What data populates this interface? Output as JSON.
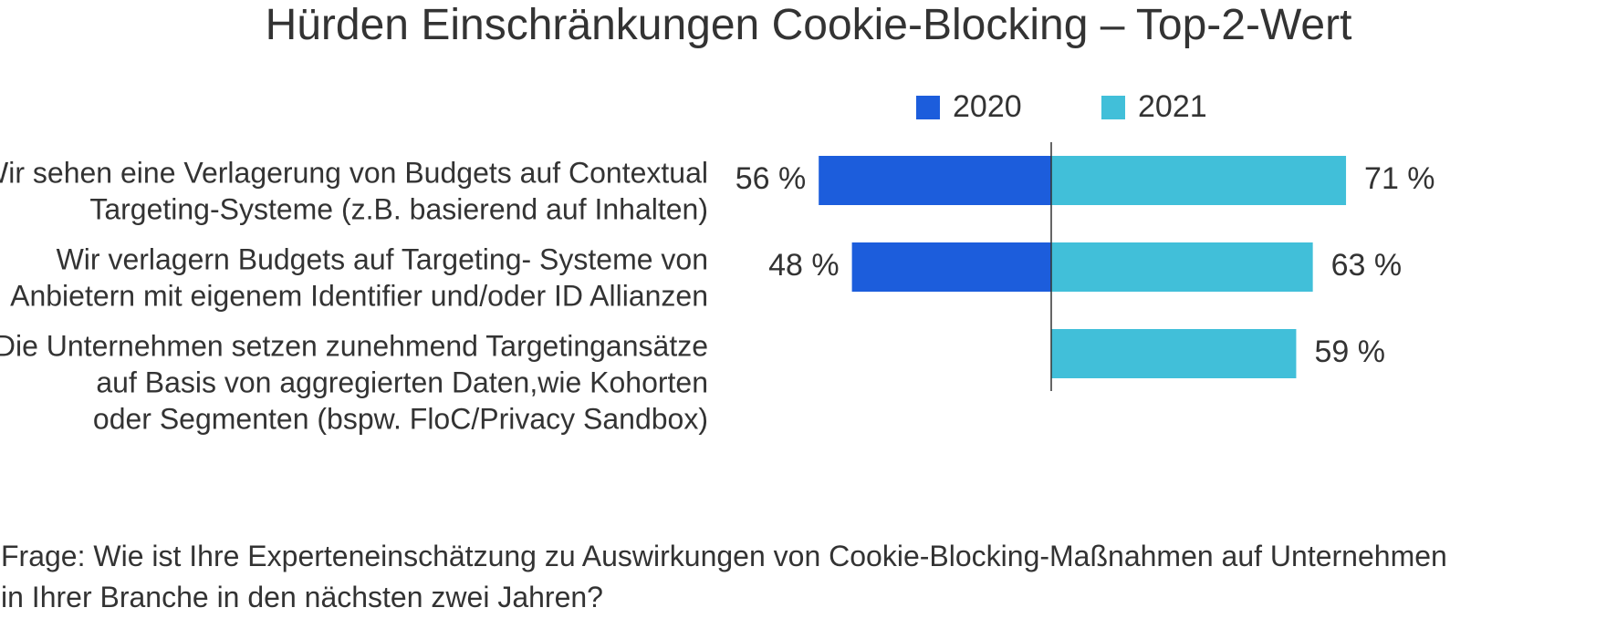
{
  "chart_data": {
    "type": "bar",
    "orientation": "horizontal-diverging",
    "title": "Hürden Einschränkungen Cookie-Blocking – Top-2-Wert",
    "legend": {
      "placement": "top-center"
    },
    "categories": [
      [
        "Wir sehen eine Verlagerung von Budgets auf Contextual",
        "Targeting-Systeme (z.B. basierend auf Inhalten)"
      ],
      [
        "Wir verlagern Budgets auf Targeting- Systeme von",
        "Anbietern mit eigenem Identifier und/oder ID Allianzen"
      ],
      [
        "Die Unternehmen setzen zunehmend Targetingansätze",
        "auf Basis von aggregierten Daten,wie Kohorten",
        "oder Segmenten (bspw. FloC/Privacy Sandbox)"
      ]
    ],
    "series": [
      {
        "name": "2020",
        "color": "#1c5ddc",
        "side": "left",
        "values": [
          56,
          48,
          null
        ]
      },
      {
        "name": "2021",
        "color": "#41bfd9",
        "side": "right",
        "values": [
          71,
          63,
          59
        ]
      }
    ],
    "value_suffix": " %",
    "xlim": [
      0,
      100
    ],
    "grid": false
  },
  "footnote": [
    "Frage: Wie ist Ihre Experteneinschätzung zu Auswirkungen von Cookie-Blocking-Maßnahmen auf Unternehmen",
    "in Ihrer Branche in den nächsten zwei Jahren?"
  ]
}
